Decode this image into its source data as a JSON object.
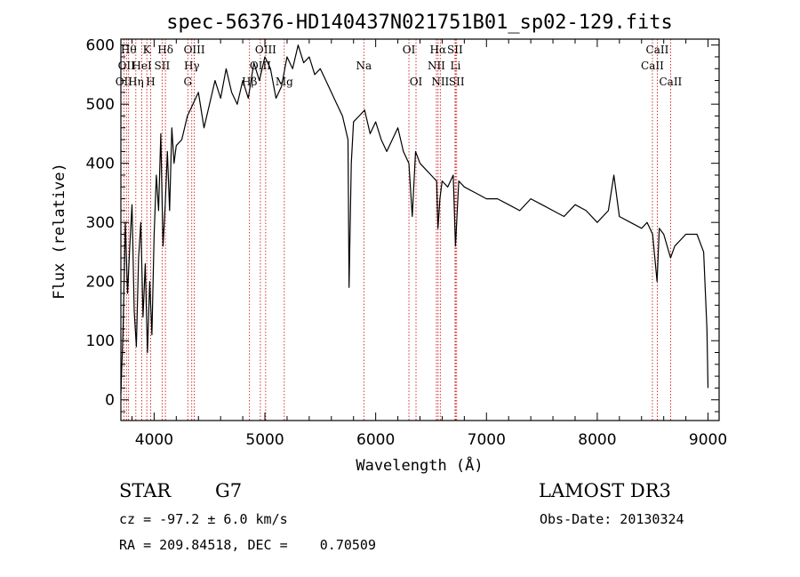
{
  "chart_data": {
    "type": "line",
    "title": "spec-56376-HD140437N021751B01_sp02-129.fits",
    "xlabel": "Wavelength (Å)",
    "ylabel": "Flux (relative)",
    "xlim": [
      3700,
      9100
    ],
    "ylim": [
      -35,
      610
    ],
    "xticks": [
      4000,
      5000,
      6000,
      7000,
      8000,
      9000
    ],
    "yticks": [
      0,
      100,
      200,
      300,
      400,
      500,
      600
    ],
    "series": [
      {
        "name": "spectrum",
        "x": [
          3700,
          3720,
          3740,
          3760,
          3780,
          3800,
          3820,
          3840,
          3860,
          3880,
          3900,
          3920,
          3940,
          3960,
          3980,
          4000,
          4020,
          4040,
          4060,
          4080,
          4100,
          4120,
          4140,
          4160,
          4180,
          4200,
          4250,
          4300,
          4350,
          4400,
          4450,
          4500,
          4550,
          4600,
          4650,
          4700,
          4750,
          4800,
          4850,
          4900,
          4950,
          5000,
          5050,
          5100,
          5150,
          5200,
          5250,
          5300,
          5350,
          5400,
          5450,
          5500,
          5550,
          5600,
          5650,
          5700,
          5750,
          5760,
          5780,
          5800,
          5850,
          5900,
          5950,
          6000,
          6050,
          6100,
          6150,
          6200,
          6250,
          6300,
          6330,
          6360,
          6400,
          6450,
          6500,
          6550,
          6562,
          6580,
          6600,
          6650,
          6700,
          6720,
          6750,
          6800,
          6900,
          7000,
          7100,
          7200,
          7300,
          7400,
          7500,
          7600,
          7700,
          7800,
          7900,
          8000,
          8100,
          8150,
          8200,
          8300,
          8400,
          8450,
          8500,
          8540,
          8560,
          8600,
          8662,
          8700,
          8800,
          8900,
          8960,
          8990,
          9000
        ],
        "y": [
          10,
          120,
          300,
          180,
          260,
          330,
          150,
          90,
          240,
          300,
          140,
          230,
          80,
          200,
          110,
          280,
          380,
          320,
          450,
          260,
          330,
          420,
          320,
          460,
          400,
          430,
          440,
          480,
          500,
          520,
          460,
          500,
          540,
          510,
          560,
          520,
          500,
          540,
          510,
          570,
          540,
          580,
          560,
          510,
          530,
          580,
          560,
          600,
          570,
          580,
          550,
          560,
          540,
          520,
          500,
          480,
          440,
          190,
          400,
          470,
          480,
          490,
          450,
          470,
          440,
          420,
          440,
          460,
          420,
          400,
          310,
          420,
          400,
          390,
          380,
          370,
          290,
          340,
          370,
          360,
          380,
          260,
          370,
          360,
          350,
          340,
          340,
          330,
          320,
          340,
          330,
          320,
          310,
          330,
          320,
          300,
          320,
          380,
          310,
          300,
          290,
          300,
          280,
          200,
          290,
          280,
          240,
          260,
          280,
          280,
          250,
          120,
          20
        ]
      }
    ],
    "spectral_lines": [
      {
        "wavelength": 3727,
        "label": "OII",
        "row": 2
      },
      {
        "wavelength": 3750,
        "label": "OII",
        "row": 1
      },
      {
        "wavelength": 3770,
        "label": "Hθ",
        "row": 0
      },
      {
        "wavelength": 3835,
        "label": "Hη",
        "row": 2
      },
      {
        "wavelength": 3889,
        "label": "HeI",
        "row": 1
      },
      {
        "wavelength": 3934,
        "label": "K",
        "row": 0
      },
      {
        "wavelength": 3969,
        "label": "H",
        "row": 2
      },
      {
        "wavelength": 4072,
        "label": "SII",
        "row": 1
      },
      {
        "wavelength": 4102,
        "label": "Hδ",
        "row": 0
      },
      {
        "wavelength": 4304,
        "label": "G",
        "row": 2
      },
      {
        "wavelength": 4340,
        "label": "Hγ",
        "row": 1
      },
      {
        "wavelength": 4363,
        "label": "OIII",
        "row": 0
      },
      {
        "wavelength": 4861,
        "label": "Hβ",
        "row": 2
      },
      {
        "wavelength": 4959,
        "label": "OIII",
        "row": 1
      },
      {
        "wavelength": 5007,
        "label": "OIII",
        "row": 0
      },
      {
        "wavelength": 5175,
        "label": "Mg",
        "row": 2
      },
      {
        "wavelength": 5893,
        "label": "Na",
        "row": 1
      },
      {
        "wavelength": 6300,
        "label": "OI",
        "row": 0
      },
      {
        "wavelength": 6364,
        "label": "OI",
        "row": 2
      },
      {
        "wavelength": 6548,
        "label": "NII",
        "row": 1
      },
      {
        "wavelength": 6563,
        "label": "Hα",
        "row": 0
      },
      {
        "wavelength": 6583,
        "label": "NII",
        "row": 2
      },
      {
        "wavelength": 6716,
        "label": "SII",
        "row": 0
      },
      {
        "wavelength": 6720,
        "label": "Li",
        "row": 1
      },
      {
        "wavelength": 6731,
        "label": "SII",
        "row": 2
      },
      {
        "wavelength": 8498,
        "label": "CaII",
        "row": 1
      },
      {
        "wavelength": 8542,
        "label": "CaII",
        "row": 0
      },
      {
        "wavelength": 8662,
        "label": "CaII",
        "row": 2
      }
    ]
  },
  "info": {
    "object_class": "STAR",
    "subclass": "G7",
    "survey": "LAMOST DR3",
    "redshift": "cz = -97.2 ± 6.0 km/s",
    "obs_date": "Obs-Date: 20130324",
    "coords": "RA = 209.84518, DEC =    0.70509"
  },
  "colors": {
    "line_marker": "#cc0000",
    "spectrum": "#000000",
    "axes": "#000000"
  }
}
